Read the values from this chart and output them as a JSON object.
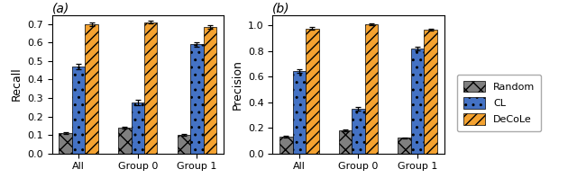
{
  "subplot_a": {
    "title": "(a)",
    "ylabel": "Recall",
    "ylim": [
      0.0,
      0.75
    ],
    "yticks": [
      0.0,
      0.1,
      0.2,
      0.3,
      0.4,
      0.5,
      0.6,
      0.7
    ],
    "groups": [
      "All",
      "Group 0",
      "Group 1"
    ],
    "random_vals": [
      0.11,
      0.14,
      0.1
    ],
    "random_errs": [
      0.006,
      0.006,
      0.005
    ],
    "cl_vals": [
      0.47,
      0.275,
      0.59
    ],
    "cl_errs": [
      0.013,
      0.013,
      0.013
    ],
    "decole_vals": [
      0.7,
      0.71,
      0.685
    ],
    "decole_errs": [
      0.008,
      0.008,
      0.008
    ]
  },
  "subplot_b": {
    "title": "(b)",
    "ylabel": "Precision",
    "ylim": [
      0.0,
      1.08
    ],
    "yticks": [
      0.0,
      0.2,
      0.4,
      0.6,
      0.8,
      1.0
    ],
    "groups": [
      "All",
      "Group 0",
      "Group 1"
    ],
    "random_vals": [
      0.13,
      0.18,
      0.12
    ],
    "random_errs": [
      0.006,
      0.006,
      0.005
    ],
    "cl_vals": [
      0.64,
      0.35,
      0.82
    ],
    "cl_errs": [
      0.015,
      0.015,
      0.015
    ],
    "decole_vals": [
      0.975,
      1.005,
      0.965
    ],
    "decole_errs": [
      0.008,
      0.008,
      0.008
    ]
  },
  "bar_width": 0.22,
  "random_color": "#7f7f7f",
  "cl_color": "#4472c4",
  "decole_color": "#f4a230",
  "legend_labels": [
    "Random",
    "CL",
    "DeCoLe"
  ],
  "bg_color": "#ffffff",
  "figsize": [
    6.4,
    2.08
  ],
  "dpi": 100
}
